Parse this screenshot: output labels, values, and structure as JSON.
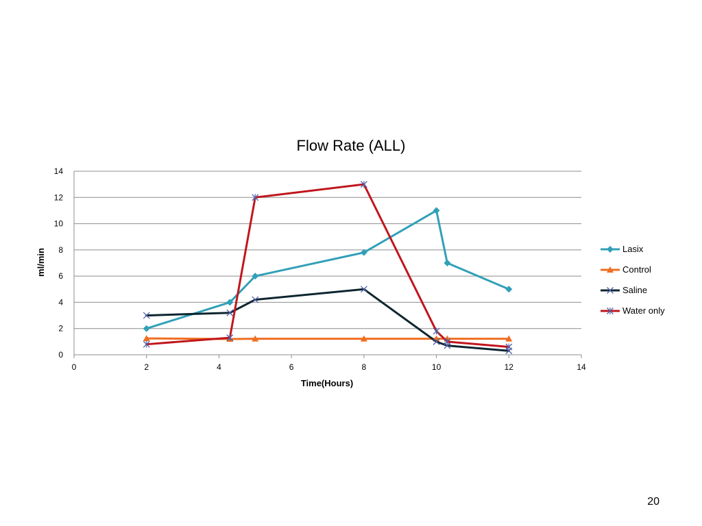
{
  "slide": {
    "page_number": "20"
  },
  "chart_data": {
    "type": "line",
    "title": "Flow Rate (ALL)",
    "xlabel": "Time(Hours)",
    "ylabel": "ml/min",
    "xlim": [
      0,
      14
    ],
    "ylim": [
      0,
      14
    ],
    "xticks": [
      0,
      2,
      4,
      6,
      8,
      10,
      12,
      14
    ],
    "yticks": [
      0,
      2,
      4,
      6,
      8,
      10,
      12,
      14
    ],
    "x_tick_labels": [
      "0",
      "2",
      "4",
      "6",
      "8",
      "10",
      "12",
      "14"
    ],
    "y_tick_labels": [
      "0",
      "2",
      "4",
      "6",
      "8",
      "10",
      "12",
      "14"
    ],
    "grid": "horizontal",
    "legend_position": "right",
    "series": [
      {
        "name": "Lasix",
        "color": "#31a0b8",
        "marker": "diamond",
        "x": [
          2,
          4.3,
          5,
          8,
          10,
          10.3,
          12
        ],
        "y": [
          2,
          4,
          6,
          7.8,
          11,
          7,
          5
        ]
      },
      {
        "name": "Control",
        "color": "#ef6e21",
        "marker": "triangle",
        "x": [
          2,
          4.3,
          5,
          8,
          10,
          10.3,
          12
        ],
        "y": [
          1.25,
          1.2,
          1.22,
          1.22,
          1.22,
          1.22,
          1.22
        ]
      },
      {
        "name": "Saline",
        "color": "#0d2530",
        "marker": "x",
        "x": [
          2,
          4.3,
          5,
          8,
          10,
          10.3,
          12
        ],
        "y": [
          3,
          3.2,
          4.2,
          5,
          1,
          0.7,
          0.3
        ]
      },
      {
        "name": "Water only",
        "color": "#c0161c",
        "marker": "star",
        "x": [
          2,
          4.3,
          5,
          8,
          10,
          10.3,
          12
        ],
        "y": [
          0.8,
          1.3,
          12,
          13,
          1.8,
          1,
          0.6
        ]
      }
    ]
  }
}
